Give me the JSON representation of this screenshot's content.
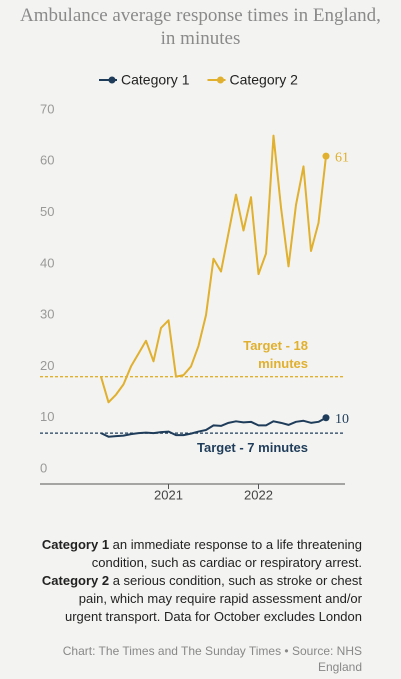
{
  "chart_data": {
    "type": "line",
    "title": "Ambulance average response times in England, in minutes",
    "categories": [
      null,
      null,
      null,
      null,
      null,
      null,
      null,
      null,
      null,
      "2021",
      null,
      null,
      null,
      null,
      null,
      null,
      null,
      null,
      null,
      null,
      null,
      "2022",
      null,
      null,
      null,
      null,
      null,
      null,
      null,
      null,
      null
    ],
    "series": [
      {
        "name": "Category 1",
        "color": "#1f3d5a",
        "values": [
          7,
          6.3,
          6.4,
          6.5,
          6.8,
          7,
          7.1,
          7,
          7.2,
          7.3,
          6.6,
          6.6,
          6.9,
          7.3,
          7.6,
          8.5,
          8.4,
          9,
          9.3,
          9.1,
          9.2,
          8.5,
          8.5,
          9.3,
          9,
          8.6,
          9.2,
          9.4,
          9,
          9.2,
          10
        ]
      },
      {
        "name": "Category 2",
        "color": "#e0b02e",
        "values": [
          18,
          13,
          14.5,
          16.5,
          20,
          22.5,
          25,
          21,
          27.5,
          29,
          18,
          18.3,
          20,
          24,
          30,
          41,
          38.5,
          46,
          53.5,
          46.5,
          53,
          38,
          42,
          65,
          51,
          39.5,
          51.5,
          59,
          42.5,
          48,
          61
        ]
      }
    ],
    "ylim": [
      0,
      70
    ],
    "yticks": [
      0,
      10,
      20,
      30,
      40,
      50,
      60,
      70
    ],
    "grid": false,
    "legend": "top",
    "reference_lines": [
      {
        "value": 18,
        "label": "Target - 18 minutes",
        "color": "#e0b02e"
      },
      {
        "value": 7,
        "label": "Target - 7 minutes",
        "color": "#1f3d5a"
      }
    ],
    "notes": [
      {
        "text": "Category 1",
        "bold": true
      },
      {
        "text": " an immediate response to a life threatening condition, such as cardiac or respiratory arrest. ",
        "bold": false
      },
      {
        "text": "Category 2",
        "bold": true
      },
      {
        "text": " a serious condition, such as stroke or chest pain, which may require rapid assessment and/or urgent transport. Data for October excludes London",
        "bold": false
      }
    ],
    "source": "Chart: The Times and The Sunday Times • Source: NHS England"
  }
}
